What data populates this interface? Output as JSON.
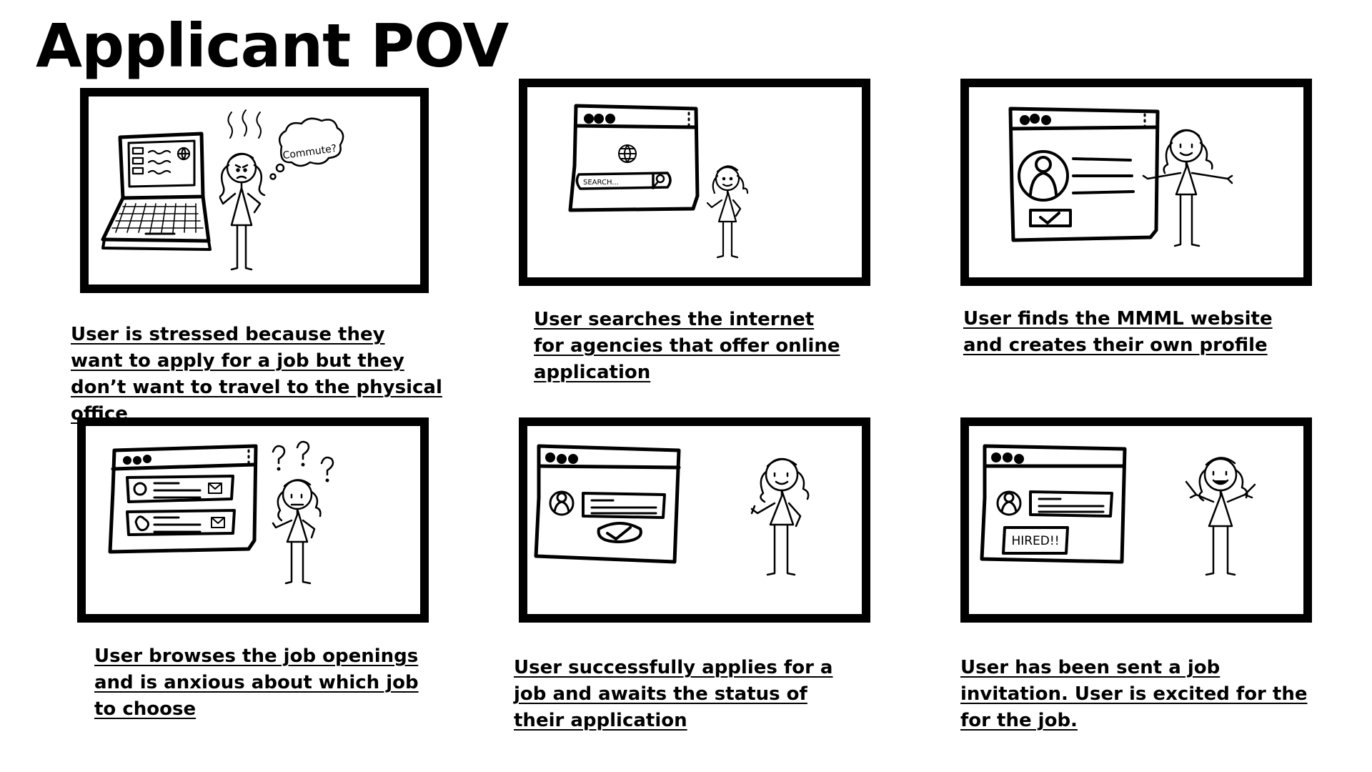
{
  "page": {
    "title": "Applicant POV"
  },
  "panels": [
    {
      "caption": "User is stressed because they want to apply for a job but they don’t want  to travel to the physical office",
      "bubble_text": "Commute?"
    },
    {
      "caption": "User searches the internet for agencies that offer online application",
      "search_placeholder": "SEARCH..."
    },
    {
      "caption": "User finds the MMML website and creates their own profile"
    },
    {
      "caption": "User browses the job openings and is anxious about which job to choose"
    },
    {
      "caption": "User successfully applies for a job and awaits the status of their application"
    },
    {
      "caption": "User has been sent a job invitation. User is excited for the for the job.",
      "badge_text": "HIRED!!"
    }
  ]
}
